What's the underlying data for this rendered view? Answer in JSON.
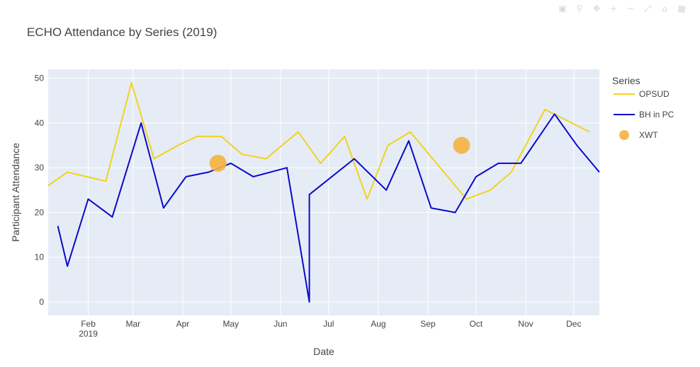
{
  "toolbar": {
    "icons": [
      "camera-icon",
      "zoom-icon",
      "pan-icon",
      "zoom-in-icon",
      "zoom-out-icon",
      "autoscale-icon",
      "reset-axes-icon",
      "plotly-logo-icon"
    ]
  },
  "chart_data": {
    "type": "line",
    "title": "ECHO Attendance by Series (2019)",
    "xlabel": "Date",
    "ylabel": "Participant Attendance",
    "xlim": [
      "2019-01-07",
      "2019-12-17"
    ],
    "ylim": [
      -3,
      52
    ],
    "x_ticks": [
      {
        "date": "2019-02-01",
        "label": "Feb",
        "sublabel": "2019"
      },
      {
        "date": "2019-03-01",
        "label": "Mar"
      },
      {
        "date": "2019-04-01",
        "label": "Apr"
      },
      {
        "date": "2019-05-01",
        "label": "May"
      },
      {
        "date": "2019-06-01",
        "label": "Jun"
      },
      {
        "date": "2019-07-01",
        "label": "Jul"
      },
      {
        "date": "2019-08-01",
        "label": "Aug"
      },
      {
        "date": "2019-09-01",
        "label": "Sep"
      },
      {
        "date": "2019-10-01",
        "label": "Oct"
      },
      {
        "date": "2019-11-01",
        "label": "Nov"
      },
      {
        "date": "2019-12-01",
        "label": "Dec"
      }
    ],
    "y_ticks": [
      0,
      10,
      20,
      30,
      40,
      50
    ],
    "grid": true,
    "plot_bg": "#e5ecf6",
    "legend": {
      "title": "Series",
      "placement": "right"
    },
    "series": [
      {
        "name": "OPSUD",
        "mode": "lines",
        "color": "#f2d21f",
        "points": [
          [
            "2019-01-07",
            26
          ],
          [
            "2019-01-19",
            29
          ],
          [
            "2019-02-12",
            27
          ],
          [
            "2019-02-28",
            49
          ],
          [
            "2019-03-14",
            32
          ],
          [
            "2019-03-29",
            35
          ],
          [
            "2019-04-10",
            37
          ],
          [
            "2019-04-25",
            37
          ],
          [
            "2019-05-08",
            33
          ],
          [
            "2019-05-23",
            32
          ],
          [
            "2019-06-12",
            38
          ],
          [
            "2019-06-26",
            31
          ],
          [
            "2019-07-11",
            37
          ],
          [
            "2019-07-25",
            23
          ],
          [
            "2019-08-07",
            35
          ],
          [
            "2019-08-21",
            38
          ],
          [
            "2019-09-25",
            23
          ],
          [
            "2019-10-10",
            25
          ],
          [
            "2019-10-23",
            29
          ],
          [
            "2019-11-13",
            43
          ],
          [
            "2019-12-11",
            38
          ]
        ]
      },
      {
        "name": "BH in PC",
        "mode": "lines",
        "color": "#0a0ac8",
        "points": [
          [
            "2019-01-13",
            17
          ],
          [
            "2019-01-19",
            8
          ],
          [
            "2019-02-01",
            23
          ],
          [
            "2019-02-16",
            19
          ],
          [
            "2019-03-06",
            40
          ],
          [
            "2019-03-20",
            21
          ],
          [
            "2019-04-03",
            28
          ],
          [
            "2019-04-17",
            29
          ],
          [
            "2019-05-01",
            31
          ],
          [
            "2019-05-15",
            28
          ],
          [
            "2019-06-05",
            30
          ],
          [
            "2019-06-19",
            0
          ],
          [
            "2019-06-19",
            24
          ],
          [
            "2019-07-17",
            32
          ],
          [
            "2019-08-06",
            25
          ],
          [
            "2019-08-20",
            36
          ],
          [
            "2019-09-03",
            21
          ],
          [
            "2019-09-18",
            20
          ],
          [
            "2019-10-01",
            28
          ],
          [
            "2019-10-15",
            31
          ],
          [
            "2019-10-29",
            31
          ],
          [
            "2019-11-19",
            42
          ],
          [
            "2019-12-03",
            35
          ],
          [
            "2019-12-17",
            29
          ]
        ]
      },
      {
        "name": "XWT",
        "mode": "markers",
        "color": "#f5b341",
        "points": [
          [
            "2019-04-23",
            31
          ],
          [
            "2019-09-22",
            35
          ]
        ]
      }
    ]
  }
}
